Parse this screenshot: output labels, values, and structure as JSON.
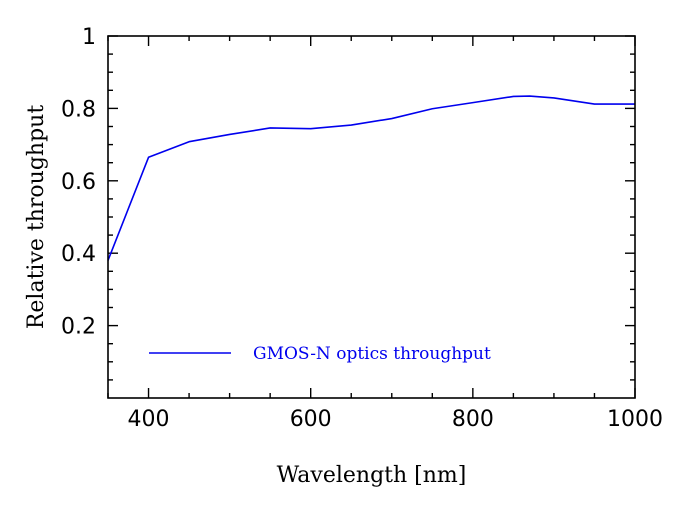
{
  "chart_data": {
    "type": "line",
    "xlabel": "Wavelength [nm]",
    "ylabel": "Relative throughput",
    "xlim": [
      350,
      1000
    ],
    "ylim": [
      0,
      1
    ],
    "x_ticks": [
      400,
      600,
      800,
      1000
    ],
    "x_tick_labels": [
      "400",
      "600",
      "800",
      "1000"
    ],
    "x_minor_step": 50,
    "y_ticks": [
      0.2,
      0.4,
      0.6,
      0.8,
      1
    ],
    "y_tick_labels": [
      "0.2",
      "0.4",
      "0.6",
      "0.8",
      "1"
    ],
    "y_minor_step": 0.05,
    "grid": false,
    "legend_position": "bottom-left",
    "series": [
      {
        "name": "GMOS-N optics throughput",
        "color": "#0000ee",
        "x": [
          350,
          400,
          450,
          500,
          550,
          600,
          650,
          700,
          750,
          800,
          850,
          870,
          900,
          950,
          1000
        ],
        "y": [
          0.38,
          0.665,
          0.708,
          0.728,
          0.746,
          0.744,
          0.754,
          0.772,
          0.799,
          0.816,
          0.833,
          0.834,
          0.829,
          0.812,
          0.812
        ]
      }
    ]
  }
}
